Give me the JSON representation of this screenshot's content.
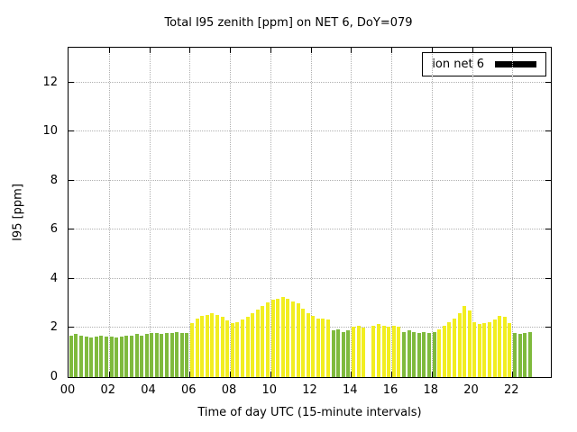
{
  "chart_data": {
    "type": "bar",
    "title": "Total I95 zenith [ppm] on NET 6, DoY=079",
    "xlabel": "Time of day UTC (15-minute intervals)",
    "ylabel": "I95 [ppm]",
    "xlim": [
      0,
      24
    ],
    "ylim": [
      0,
      13.5
    ],
    "grid": true,
    "legend": {
      "label": "ion net 6",
      "swatch_color": "#000000",
      "position": "top-right"
    },
    "xticks": [
      {
        "pos": 0,
        "label": "00"
      },
      {
        "pos": 2,
        "label": "02"
      },
      {
        "pos": 4,
        "label": "04"
      },
      {
        "pos": 6,
        "label": "06"
      },
      {
        "pos": 8,
        "label": "08"
      },
      {
        "pos": 10,
        "label": "10"
      },
      {
        "pos": 12,
        "label": "12"
      },
      {
        "pos": 14,
        "label": "14"
      },
      {
        "pos": 16,
        "label": "16"
      },
      {
        "pos": 18,
        "label": "18"
      },
      {
        "pos": 20,
        "label": "20"
      },
      {
        "pos": 22,
        "label": "22"
      }
    ],
    "yticks": [
      {
        "pos": 0,
        "label": "0"
      },
      {
        "pos": 2,
        "label": "2"
      },
      {
        "pos": 4,
        "label": "4"
      },
      {
        "pos": 6,
        "label": "6"
      },
      {
        "pos": 8,
        "label": "8"
      },
      {
        "pos": 10,
        "label": "10"
      },
      {
        "pos": 12,
        "label": "12"
      }
    ],
    "x_start": 0,
    "x_step": 0.25,
    "colors": {
      "g": "#7fba3d",
      "y": "#f2ee20"
    },
    "bars": [
      [
        1.7,
        "g"
      ],
      [
        1.75,
        "g"
      ],
      [
        1.7,
        "g"
      ],
      [
        1.65,
        "g"
      ],
      [
        1.6,
        "g"
      ],
      [
        1.65,
        "g"
      ],
      [
        1.7,
        "g"
      ],
      [
        1.65,
        "g"
      ],
      [
        1.65,
        "g"
      ],
      [
        1.6,
        "g"
      ],
      [
        1.65,
        "g"
      ],
      [
        1.7,
        "g"
      ],
      [
        1.7,
        "g"
      ],
      [
        1.75,
        "g"
      ],
      [
        1.7,
        "g"
      ],
      [
        1.75,
        "g"
      ],
      [
        1.8,
        "g"
      ],
      [
        1.8,
        "g"
      ],
      [
        1.75,
        "g"
      ],
      [
        1.8,
        "g"
      ],
      [
        1.8,
        "g"
      ],
      [
        1.85,
        "g"
      ],
      [
        1.8,
        "g"
      ],
      [
        1.8,
        "g"
      ],
      [
        2.2,
        "y"
      ],
      [
        2.4,
        "y"
      ],
      [
        2.5,
        "y"
      ],
      [
        2.55,
        "y"
      ],
      [
        2.6,
        "y"
      ],
      [
        2.55,
        "y"
      ],
      [
        2.45,
        "y"
      ],
      [
        2.3,
        "y"
      ],
      [
        2.2,
        "y"
      ],
      [
        2.25,
        "y"
      ],
      [
        2.35,
        "y"
      ],
      [
        2.45,
        "y"
      ],
      [
        2.6,
        "y"
      ],
      [
        2.75,
        "y"
      ],
      [
        2.9,
        "y"
      ],
      [
        3.05,
        "y"
      ],
      [
        3.15,
        "y"
      ],
      [
        3.2,
        "y"
      ],
      [
        3.25,
        "y"
      ],
      [
        3.2,
        "y"
      ],
      [
        3.1,
        "y"
      ],
      [
        3.0,
        "y"
      ],
      [
        2.8,
        "y"
      ],
      [
        2.6,
        "y"
      ],
      [
        2.5,
        "y"
      ],
      [
        2.4,
        "y"
      ],
      [
        2.4,
        "y"
      ],
      [
        2.35,
        "y"
      ],
      [
        1.9,
        "g"
      ],
      [
        1.95,
        "g"
      ],
      [
        1.85,
        "g"
      ],
      [
        1.9,
        "g"
      ],
      [
        2.05,
        "y"
      ],
      [
        2.1,
        "y"
      ],
      [
        2.0,
        "y"
      ],
      [
        null,
        "y"
      ],
      [
        2.1,
        "y"
      ],
      [
        2.15,
        "y"
      ],
      [
        2.1,
        "y"
      ],
      [
        2.05,
        "y"
      ],
      [
        2.1,
        "y"
      ],
      [
        2.05,
        "y"
      ],
      [
        1.85,
        "g"
      ],
      [
        1.9,
        "g"
      ],
      [
        1.85,
        "g"
      ],
      [
        1.8,
        "g"
      ],
      [
        1.85,
        "g"
      ],
      [
        1.8,
        "g"
      ],
      [
        1.85,
        "g"
      ],
      [
        1.95,
        "y"
      ],
      [
        2.1,
        "y"
      ],
      [
        2.25,
        "y"
      ],
      [
        2.4,
        "y"
      ],
      [
        2.6,
        "y"
      ],
      [
        2.9,
        "y"
      ],
      [
        2.7,
        "y"
      ],
      [
        2.25,
        "y"
      ],
      [
        2.15,
        "y"
      ],
      [
        2.2,
        "y"
      ],
      [
        2.25,
        "y"
      ],
      [
        2.35,
        "y"
      ],
      [
        2.5,
        "y"
      ],
      [
        2.45,
        "y"
      ],
      [
        2.2,
        "y"
      ],
      [
        1.8,
        "g"
      ],
      [
        1.75,
        "g"
      ],
      [
        1.8,
        "g"
      ],
      [
        1.85,
        "g"
      ]
    ]
  }
}
